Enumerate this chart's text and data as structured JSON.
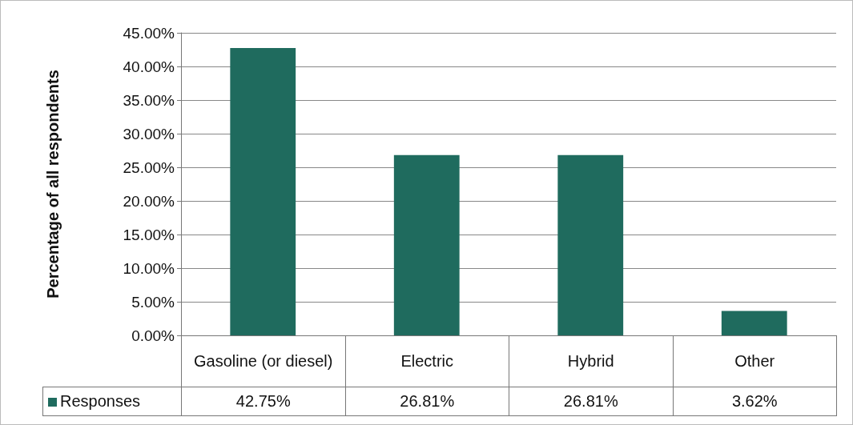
{
  "chart_data": {
    "type": "bar",
    "ylabel": "Percentage of all respondents",
    "categories": [
      "Gasoline (or diesel)",
      "Electric",
      "Hybrid",
      "Other"
    ],
    "series": [
      {
        "name": "Responses",
        "color": "#1f6b5e",
        "values": [
          42.75,
          26.81,
          26.81,
          3.62
        ],
        "value_labels": [
          "42.75%",
          "26.81%",
          "26.81%",
          "3.62%"
        ]
      }
    ],
    "ylim": [
      0,
      45
    ],
    "yticks": [
      {
        "value": 0,
        "label": "0.00%"
      },
      {
        "value": 5,
        "label": "5.00%"
      },
      {
        "value": 10,
        "label": "10.00%"
      },
      {
        "value": 15,
        "label": "15.00%"
      },
      {
        "value": 20,
        "label": "20.00%"
      },
      {
        "value": 25,
        "label": "25.00%"
      },
      {
        "value": 30,
        "label": "30.00%"
      },
      {
        "value": 35,
        "label": "35.00%"
      },
      {
        "value": 40,
        "label": "40.00%"
      },
      {
        "value": 45,
        "label": "45.00%"
      }
    ],
    "grid": "y",
    "legend": "bottom"
  }
}
